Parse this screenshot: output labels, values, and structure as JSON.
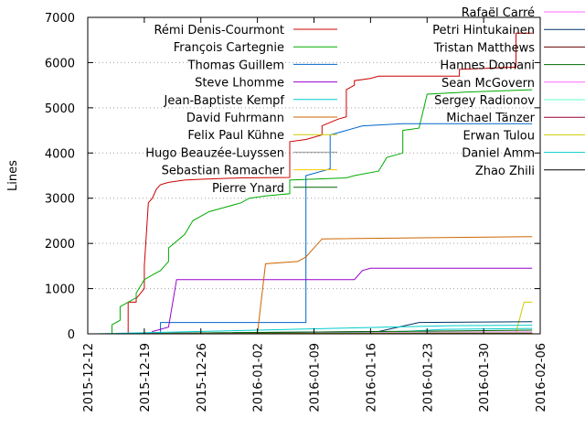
{
  "chart_data": {
    "type": "line",
    "title": "",
    "xlabel": "",
    "ylabel": "Lines",
    "ylim": [
      0,
      7000
    ],
    "xlim": [
      "2015-12-12",
      "2016-02-06"
    ],
    "y_ticks": [
      0,
      1000,
      2000,
      3000,
      4000,
      5000,
      6000,
      7000
    ],
    "x_ticks": [
      "2015-12-12",
      "2015-12-19",
      "2015-12-26",
      "2016-01-02",
      "2016-01-09",
      "2016-01-16",
      "2016-01-23",
      "2016-01-30",
      "2016-02-06"
    ],
    "grid": "horizontal dotted",
    "legend_position": "top, two columns",
    "series": [
      {
        "name": "Rémi Denis-Courmont",
        "color": "#cc0000",
        "points": [
          [
            "2015-12-13",
            0
          ],
          [
            "2015-12-17",
            0
          ],
          [
            "2015-12-17",
            700
          ],
          [
            "2015-12-18",
            700
          ],
          [
            "2015-12-18",
            780
          ],
          [
            "2015-12-19",
            1000
          ],
          [
            "2015-12-19",
            1500
          ],
          [
            "2015-12-19.5",
            2900
          ],
          [
            "2015-12-20",
            3000
          ],
          [
            "2015-12-20.5",
            3200
          ],
          [
            "2015-12-21",
            3300
          ],
          [
            "2015-12-22",
            3350
          ],
          [
            "2015-12-24",
            3400
          ],
          [
            "2015-12-26",
            3420
          ],
          [
            "2015-12-31",
            3450
          ],
          [
            "2016-01-06",
            3460
          ],
          [
            "2016-01-06",
            4250
          ],
          [
            "2016-01-08",
            4300
          ],
          [
            "2016-01-10",
            4400
          ],
          [
            "2016-01-10",
            4600
          ],
          [
            "2016-01-12",
            4750
          ],
          [
            "2016-01-13",
            4800
          ],
          [
            "2016-01-13",
            5400
          ],
          [
            "2016-01-14",
            5500
          ],
          [
            "2016-01-14",
            5600
          ],
          [
            "2016-01-16",
            5650
          ],
          [
            "2016-01-17",
            5700
          ],
          [
            "2016-01-27",
            5700
          ],
          [
            "2016-01-27",
            5850
          ],
          [
            "2016-02-03",
            5900
          ],
          [
            "2016-02-03",
            6650
          ],
          [
            "2016-02-05",
            6650
          ]
        ]
      },
      {
        "name": "François Cartegnie",
        "color": "#00aa00",
        "points": [
          [
            "2015-12-15",
            0
          ],
          [
            "2015-12-15",
            200
          ],
          [
            "2015-12-16",
            300
          ],
          [
            "2015-12-16",
            600
          ],
          [
            "2015-12-17",
            700
          ],
          [
            "2015-12-18",
            800
          ],
          [
            "2015-12-18",
            900
          ],
          [
            "2015-12-19",
            1200
          ],
          [
            "2015-12-20",
            1300
          ],
          [
            "2015-12-21",
            1400
          ],
          [
            "2015-12-22",
            1600
          ],
          [
            "2015-12-22",
            1900
          ],
          [
            "2015-12-24",
            2200
          ],
          [
            "2015-12-25",
            2500
          ],
          [
            "2015-12-27",
            2700
          ],
          [
            "2015-12-29",
            2800
          ],
          [
            "2015-12-31",
            2900
          ],
          [
            "2016-01-01",
            3000
          ],
          [
            "2016-01-03",
            3050
          ],
          [
            "2016-01-06",
            3100
          ],
          [
            "2016-01-06",
            3400
          ],
          [
            "2016-01-13",
            3450
          ],
          [
            "2016-01-14",
            3500
          ],
          [
            "2016-01-17",
            3600
          ],
          [
            "2016-01-18",
            3900
          ],
          [
            "2016-01-20",
            4000
          ],
          [
            "2016-01-20",
            4500
          ],
          [
            "2016-01-22",
            4550
          ],
          [
            "2016-01-23",
            5300
          ],
          [
            "2016-01-28",
            5350
          ],
          [
            "2016-02-05",
            5400
          ]
        ]
      },
      {
        "name": "Thomas Guillem",
        "color": "#0066cc",
        "points": [
          [
            "2015-12-13",
            0
          ],
          [
            "2015-12-21",
            0
          ],
          [
            "2015-12-21",
            250
          ],
          [
            "2016-01-08",
            250
          ],
          [
            "2016-01-08",
            3500
          ],
          [
            "2016-01-11",
            3650
          ],
          [
            "2016-01-11",
            4400
          ],
          [
            "2016-01-13",
            4500
          ],
          [
            "2016-01-15",
            4600
          ],
          [
            "2016-01-20",
            4650
          ],
          [
            "2016-02-05",
            4650
          ]
        ]
      },
      {
        "name": "Steve Lhomme",
        "color": "#9900cc",
        "points": [
          [
            "2015-12-13",
            0
          ],
          [
            "2015-12-20",
            0
          ],
          [
            "2015-12-20",
            50
          ],
          [
            "2015-12-22",
            150
          ],
          [
            "2015-12-23",
            1200
          ],
          [
            "2016-01-05",
            1200
          ],
          [
            "2016-01-14",
            1200
          ],
          [
            "2016-01-15",
            1400
          ],
          [
            "2016-01-16",
            1450
          ],
          [
            "2016-01-27",
            1450
          ],
          [
            "2016-02-05",
            1450
          ]
        ]
      },
      {
        "name": "Jean-Baptiste Kempf",
        "color": "#00cccc",
        "points": [
          [
            "2015-12-13",
            0
          ],
          [
            "2016-01-18",
            10
          ],
          [
            "2016-01-20",
            50
          ],
          [
            "2016-01-25",
            100
          ],
          [
            "2016-02-05",
            120
          ]
        ]
      },
      {
        "name": "David Fuhrmann",
        "color": "#cc6600",
        "points": [
          [
            "2015-12-13",
            0
          ],
          [
            "2016-01-02",
            0
          ],
          [
            "2016-01-03",
            1550
          ],
          [
            "2016-01-07",
            1600
          ],
          [
            "2016-01-08",
            1700
          ],
          [
            "2016-01-10",
            2100
          ],
          [
            "2016-02-05",
            2150
          ]
        ]
      },
      {
        "name": "Felix Paul Kühne",
        "color": "#cccc00",
        "points": [
          [
            "2015-12-13",
            0
          ],
          [
            "2016-01-25",
            20
          ],
          [
            "2016-02-03",
            30
          ],
          [
            "2016-02-04",
            700
          ],
          [
            "2016-02-05",
            700
          ]
        ]
      },
      {
        "name": "Hugo Beauzée-Luyssen",
        "color": "#999999",
        "points": [
          [
            "2015-12-13",
            0
          ],
          [
            "2016-01-06",
            10
          ],
          [
            "2016-01-16",
            30
          ],
          [
            "2016-02-05",
            40
          ]
        ]
      },
      {
        "name": "Sebastian Ramacher",
        "color": "#ffcc00",
        "points": [
          [
            "2015-12-13",
            0
          ],
          [
            "2016-01-09",
            5
          ],
          [
            "2016-02-05",
            5
          ]
        ]
      },
      {
        "name": "Pierre Ynard",
        "color": "#006600",
        "points": [
          [
            "2015-12-13",
            0
          ],
          [
            "2016-01-08",
            10
          ],
          [
            "2016-02-05",
            10
          ]
        ]
      },
      {
        "name": "Rafaël Carré",
        "color": "#ff66ff",
        "points": [
          [
            "2015-12-13",
            0
          ],
          [
            "2016-01-20",
            30
          ],
          [
            "2016-02-05",
            40
          ]
        ]
      },
      {
        "name": "Petri Hintukainen",
        "color": "#003366",
        "points": [
          [
            "2015-12-13",
            0
          ],
          [
            "2016-01-17",
            50
          ],
          [
            "2016-01-22",
            250
          ],
          [
            "2016-02-05",
            270
          ]
        ]
      },
      {
        "name": "Tristan Matthews",
        "color": "#660000",
        "points": [
          [
            "2015-12-13",
            0
          ],
          [
            "2016-01-10",
            5
          ],
          [
            "2016-02-05",
            5
          ]
        ]
      },
      {
        "name": "Hannes Domani",
        "color": "#006600",
        "points": [
          [
            "2015-12-13",
            0
          ],
          [
            "2016-01-24",
            60
          ],
          [
            "2016-02-05",
            80
          ]
        ]
      },
      {
        "name": "Sean McGovern",
        "color": "#ff66ff",
        "points": [
          [
            "2015-12-13",
            0
          ],
          [
            "2016-01-25",
            10
          ],
          [
            "2016-02-05",
            10
          ]
        ]
      },
      {
        "name": "Sergey Radionov",
        "color": "#66ffcc",
        "points": [
          [
            "2015-12-13",
            0
          ],
          [
            "2016-01-25",
            20
          ],
          [
            "2016-02-05",
            20
          ]
        ]
      },
      {
        "name": "Michael Tänzer",
        "color": "#990033",
        "points": [
          [
            "2015-12-13",
            0
          ],
          [
            "2016-01-15",
            10
          ],
          [
            "2016-02-05",
            10
          ]
        ]
      },
      {
        "name": "Erwan Tulou",
        "color": "#cccc00",
        "points": [
          [
            "2015-12-13",
            0
          ],
          [
            "2016-01-25",
            15
          ],
          [
            "2016-02-05",
            15
          ]
        ]
      },
      {
        "name": "Daniel Amm",
        "color": "#00cccc",
        "points": [
          [
            "2015-12-13",
            0
          ],
          [
            "2016-01-26",
            180
          ],
          [
            "2016-02-05",
            190
          ]
        ]
      },
      {
        "name": "Zhao Zhili",
        "color": "#000000",
        "points": [
          [
            "2015-12-13",
            0
          ],
          [
            "2016-01-28",
            5
          ],
          [
            "2016-02-05",
            5
          ]
        ]
      }
    ],
    "legend_left": [
      0,
      1,
      2,
      3,
      4,
      5,
      6,
      7,
      8,
      9
    ],
    "legend_right": [
      10,
      11,
      12,
      13,
      14,
      15,
      16,
      17,
      18,
      19
    ]
  }
}
